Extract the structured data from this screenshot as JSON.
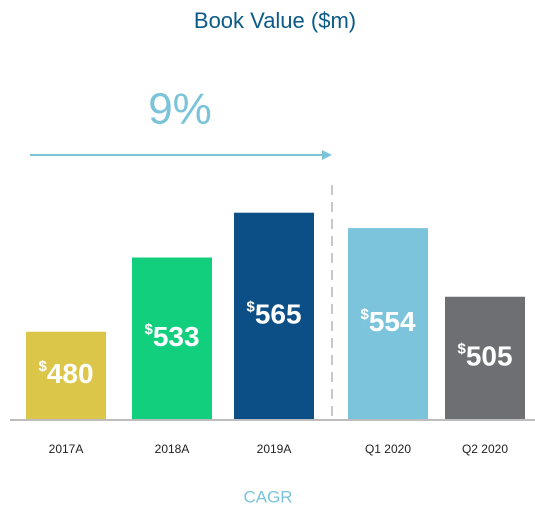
{
  "chart_data": {
    "type": "bar",
    "title": "Book Value ($m)",
    "categories": [
      "2017A",
      "2018A",
      "2019A",
      "Q1 2020",
      "Q2 2020"
    ],
    "values": [
      480,
      533,
      565,
      554,
      505
    ],
    "value_labels": [
      "$480",
      "$533",
      "$565",
      "$554",
      "$505"
    ],
    "colors": [
      "#dcc64a",
      "#12cf7e",
      "#0b4f86",
      "#7cc3dc",
      "#6e6f73"
    ],
    "ylim": [
      417,
      714
    ],
    "annotations": [
      "9%",
      "CAGR"
    ]
  }
}
